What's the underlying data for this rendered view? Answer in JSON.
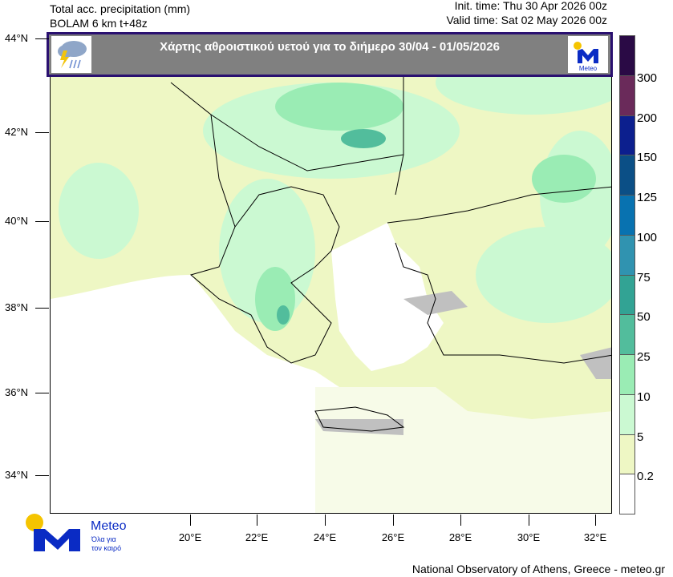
{
  "header": {
    "line1": "Total acc. precipitation (mm)",
    "line2": "BOLAM 6 km t+48z",
    "init": "Init. time: Thu 30 Apr 2026 00z",
    "valid": "Valid time: Sat 02 May 2026 00z"
  },
  "banner": {
    "title": "Χάρτης αθροιστικού υετού για το διήμερο 30/04 - 01/05/2026",
    "left_icon": "rain-cloud-lightning-icon",
    "right_logo": "Meteo"
  },
  "lat_labels": [
    "44°N",
    "42°N",
    "40°N",
    "38°N",
    "36°N",
    "34°N"
  ],
  "lon_labels": [
    "20°E",
    "22°E",
    "24°E",
    "26°E",
    "28°E",
    "30°E",
    "32°E"
  ],
  "colorbar": {
    "labels": [
      "300",
      "200",
      "150",
      "125",
      "100",
      "75",
      "50",
      "25",
      "10",
      "5",
      "0.2"
    ],
    "colors": [
      "#2a0a45",
      "#6a2a5a",
      "#0c1f8e",
      "#0b4f86",
      "#0872b0",
      "#3093b0",
      "#32a394",
      "#52bd9c",
      "#9aecb4",
      "#cbf9d2",
      "#eef7c4",
      "#ffffff"
    ]
  },
  "logo": {
    "name": "Meteo",
    "tagline1": "Όλα για",
    "tagline2": "τον καιρό"
  },
  "footer": "National Observatory of Athens, Greece - meteo.gr"
}
